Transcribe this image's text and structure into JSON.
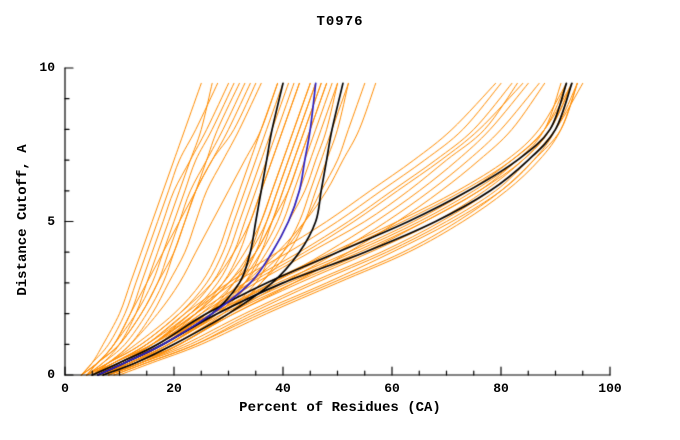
{
  "chart_data": {
    "type": "line",
    "title": "T0976",
    "xlabel": "Percent of Residues (CA)",
    "ylabel": "Distance Cutoff, A",
    "xlim": [
      0,
      100
    ],
    "ylim": [
      0,
      10
    ],
    "grid": false,
    "legend": "none",
    "x_ticks": [
      0,
      20,
      40,
      60,
      80,
      100
    ],
    "y_ticks": [
      0,
      5,
      10
    ],
    "x_minor_step": 5,
    "y_minor_step": 1,
    "y_levels": [
      0,
      0.4,
      1,
      2,
      3,
      4,
      5,
      6,
      7,
      8,
      9.5
    ],
    "series_groups": [
      {
        "name": "model-curves-orange",
        "color": "#ff8c00",
        "width": 1,
        "curves_x": [
          [
            6,
            12,
            20,
            30,
            42,
            55,
            66,
            76,
            84,
            89,
            93
          ],
          [
            8,
            14,
            22,
            33,
            45,
            58,
            69,
            78,
            85,
            90,
            94
          ],
          [
            5,
            10,
            17,
            27,
            38,
            50,
            62,
            73,
            82,
            88,
            92
          ],
          [
            9,
            15,
            24,
            35,
            48,
            60,
            71,
            80,
            86,
            90,
            93
          ],
          [
            7,
            13,
            21,
            31,
            43,
            56,
            68,
            77,
            84,
            89,
            92
          ],
          [
            10,
            16,
            25,
            37,
            50,
            63,
            73,
            81,
            87,
            91,
            94
          ],
          [
            6,
            11,
            18,
            28,
            40,
            53,
            65,
            75,
            83,
            88,
            91
          ],
          [
            8,
            14,
            23,
            34,
            46,
            59,
            70,
            79,
            85,
            90,
            95
          ],
          [
            5,
            9,
            16,
            26,
            37,
            49,
            61,
            72,
            81,
            87,
            92
          ],
          [
            7,
            12,
            19,
            29,
            41,
            54,
            66,
            76,
            83,
            89,
            93
          ],
          [
            9,
            15,
            24,
            36,
            49,
            62,
            72,
            80,
            86,
            91,
            94
          ],
          [
            6,
            10,
            17,
            27,
            39,
            52,
            64,
            74,
            82,
            88,
            93
          ],
          [
            5,
            10,
            16,
            24,
            33,
            43,
            52,
            60,
            68,
            75,
            82
          ],
          [
            7,
            12,
            19,
            28,
            38,
            48,
            57,
            65,
            72,
            78,
            85
          ],
          [
            6,
            11,
            17,
            25,
            34,
            44,
            53,
            61,
            69,
            76,
            84
          ],
          [
            8,
            13,
            20,
            30,
            40,
            50,
            59,
            67,
            74,
            80,
            87
          ],
          [
            5,
            9,
            15,
            22,
            30,
            39,
            48,
            56,
            64,
            71,
            79
          ],
          [
            7,
            11,
            18,
            26,
            35,
            45,
            55,
            63,
            70,
            77,
            83
          ],
          [
            6,
            10,
            16,
            23,
            31,
            41,
            50,
            58,
            66,
            73,
            80
          ],
          [
            8,
            14,
            21,
            31,
            42,
            52,
            61,
            69,
            76,
            82,
            88
          ],
          [
            4,
            9,
            15,
            22,
            27,
            30,
            32,
            34,
            36,
            38,
            41
          ],
          [
            5,
            10,
            17,
            24,
            29,
            32,
            34,
            36,
            38,
            40,
            43
          ],
          [
            6,
            11,
            18,
            26,
            31,
            34,
            36,
            38,
            40,
            42,
            45
          ],
          [
            5,
            10,
            16,
            23,
            28,
            31,
            33,
            35,
            37,
            39,
            42
          ],
          [
            7,
            12,
            19,
            27,
            32,
            35,
            37,
            39,
            41,
            43,
            46
          ],
          [
            4,
            8,
            14,
            21,
            26,
            29,
            31,
            33,
            35,
            37,
            40
          ],
          [
            6,
            12,
            19,
            28,
            33,
            36,
            38,
            40,
            42,
            44,
            47
          ],
          [
            5,
            11,
            18,
            26,
            32,
            36,
            39,
            41,
            43,
            45,
            48
          ],
          [
            7,
            13,
            20,
            29,
            35,
            38,
            41,
            43,
            45,
            47,
            50
          ],
          [
            6,
            12,
            18,
            27,
            33,
            37,
            40,
            42,
            44,
            46,
            49
          ],
          [
            8,
            14,
            21,
            30,
            36,
            40,
            43,
            45,
            47,
            49,
            52
          ],
          [
            5,
            9,
            15,
            23,
            29,
            33,
            36,
            38,
            40,
            42,
            45
          ],
          [
            4,
            8,
            13,
            20,
            25,
            28,
            30,
            32,
            34,
            36,
            39
          ],
          [
            6,
            10,
            16,
            24,
            30,
            34,
            37,
            39,
            41,
            43,
            46
          ],
          [
            7,
            13,
            21,
            30,
            36,
            41,
            44,
            46,
            48,
            50,
            52
          ],
          [
            5,
            10,
            17,
            25,
            31,
            35,
            38,
            40,
            42,
            44,
            47
          ],
          [
            3,
            6,
            9,
            13,
            16,
            18,
            20,
            22,
            24,
            27,
            31
          ],
          [
            4,
            7,
            11,
            15,
            18,
            20,
            22,
            24,
            27,
            30,
            34
          ],
          [
            3,
            5,
            8,
            11,
            13,
            15,
            17,
            19,
            21,
            24,
            28
          ],
          [
            4,
            6,
            10,
            14,
            17,
            19,
            21,
            23,
            26,
            29,
            33
          ],
          [
            3,
            6,
            9,
            12,
            14,
            16,
            18,
            20,
            23,
            26,
            30
          ],
          [
            5,
            8,
            12,
            16,
            19,
            22,
            24,
            26,
            29,
            32,
            36
          ],
          [
            4,
            7,
            10,
            13,
            15,
            17,
            19,
            21,
            23,
            25,
            27
          ],
          [
            3,
            5,
            7,
            10,
            12,
            14,
            16,
            18,
            20,
            22,
            25
          ],
          [
            4,
            6,
            9,
            12,
            15,
            18,
            21,
            24,
            27,
            31,
            35
          ],
          [
            5,
            8,
            12,
            17,
            21,
            24,
            27,
            30,
            33,
            36,
            39
          ],
          [
            6,
            11,
            18,
            27,
            34,
            40,
            44,
            47,
            50,
            52,
            55
          ],
          [
            5,
            10,
            17,
            26,
            33,
            39,
            44,
            48,
            51,
            54,
            57
          ],
          [
            6,
            12,
            19,
            28,
            34,
            38,
            41,
            44,
            46,
            48,
            50
          ],
          [
            4,
            8,
            14,
            21,
            27,
            31,
            34,
            36,
            38,
            40,
            43
          ],
          [
            5,
            9,
            16,
            24,
            30,
            35,
            38,
            41,
            43,
            45,
            48
          ],
          [
            3,
            6,
            10,
            14,
            17,
            20,
            22,
            24,
            26,
            28,
            32
          ]
        ]
      },
      {
        "name": "reference-curves-black",
        "color": "#000000",
        "width": 1.7,
        "curves_x": [
          [
            6,
            11,
            18,
            27,
            32,
            34,
            35,
            36,
            37,
            38,
            40
          ],
          [
            7,
            13,
            20,
            30,
            38,
            43,
            46,
            47,
            48,
            49,
            51
          ],
          [
            6,
            11,
            18,
            28,
            40,
            55,
            68,
            78,
            85,
            90,
            93
          ],
          [
            5,
            10,
            17,
            26,
            37,
            50,
            63,
            74,
            83,
            89,
            92
          ]
        ]
      },
      {
        "name": "highlight-curve-blue",
        "color": "#2a1fc4",
        "width": 1.7,
        "curves_x": [
          [
            6,
            11,
            18,
            27,
            34,
            38,
            41,
            43,
            44,
            45,
            46
          ]
        ]
      }
    ]
  }
}
